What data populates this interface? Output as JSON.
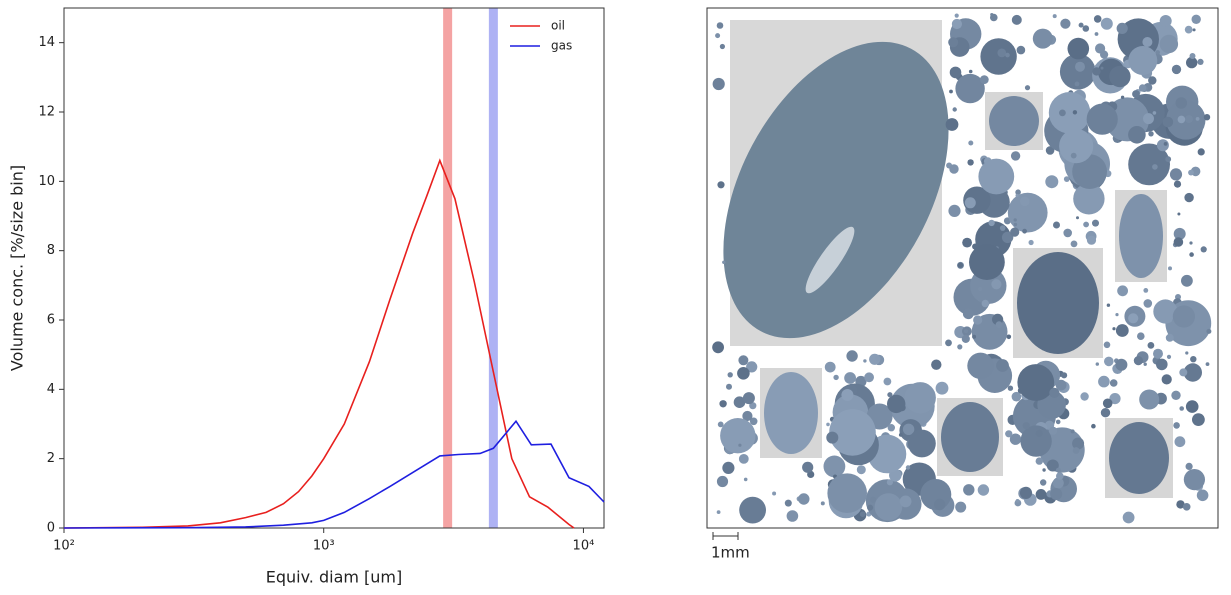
{
  "chart_data": {
    "type": "line",
    "xlabel": "Equiv. diam [um]",
    "ylabel": "Volume conc. [%/size bin]",
    "xscale": "log",
    "xlim": [
      100,
      12000
    ],
    "ylim": [
      0,
      15
    ],
    "xticks": [
      {
        "value": 100,
        "label": "10²"
      },
      {
        "value": 1000,
        "label": "10³"
      },
      {
        "value": 10000,
        "label": "10⁴"
      }
    ],
    "yticks": [
      0,
      2,
      4,
      6,
      8,
      10,
      12,
      14
    ],
    "legend": "upper right",
    "series": [
      {
        "name": "oil",
        "color": "#e8201e",
        "x": [
          100,
          200,
          300,
          400,
          500,
          600,
          700,
          800,
          900,
          1000,
          1200,
          1500,
          1800,
          2200,
          2500,
          2800,
          3200,
          3800,
          4500,
          5300,
          6200,
          7300,
          8800,
          9200
        ],
        "values": [
          0,
          0.02,
          0.06,
          0.15,
          0.3,
          0.45,
          0.7,
          1.05,
          1.5,
          2.0,
          3.0,
          4.8,
          6.6,
          8.5,
          9.6,
          10.6,
          9.5,
          7.1,
          4.5,
          2.0,
          0.9,
          0.6,
          0.1,
          0
        ]
      },
      {
        "name": "gas",
        "color": "#1f1fe0",
        "x": [
          100,
          300,
          500,
          700,
          900,
          1000,
          1200,
          1500,
          1800,
          2200,
          2800,
          3300,
          4000,
          4500,
          5500,
          6300,
          7500,
          8800,
          10500,
          12000
        ],
        "values": [
          0,
          0.01,
          0.03,
          0.08,
          0.15,
          0.22,
          0.45,
          0.85,
          1.2,
          1.6,
          2.08,
          2.12,
          2.15,
          2.3,
          3.08,
          2.4,
          2.42,
          1.45,
          1.2,
          0.75
        ]
      }
    ],
    "vlines": [
      {
        "value": 3000,
        "color": "#f4a3a3"
      },
      {
        "value": 4500,
        "color": "#aeb2f4"
      }
    ]
  },
  "montage": {
    "scale_label": "1mm"
  }
}
